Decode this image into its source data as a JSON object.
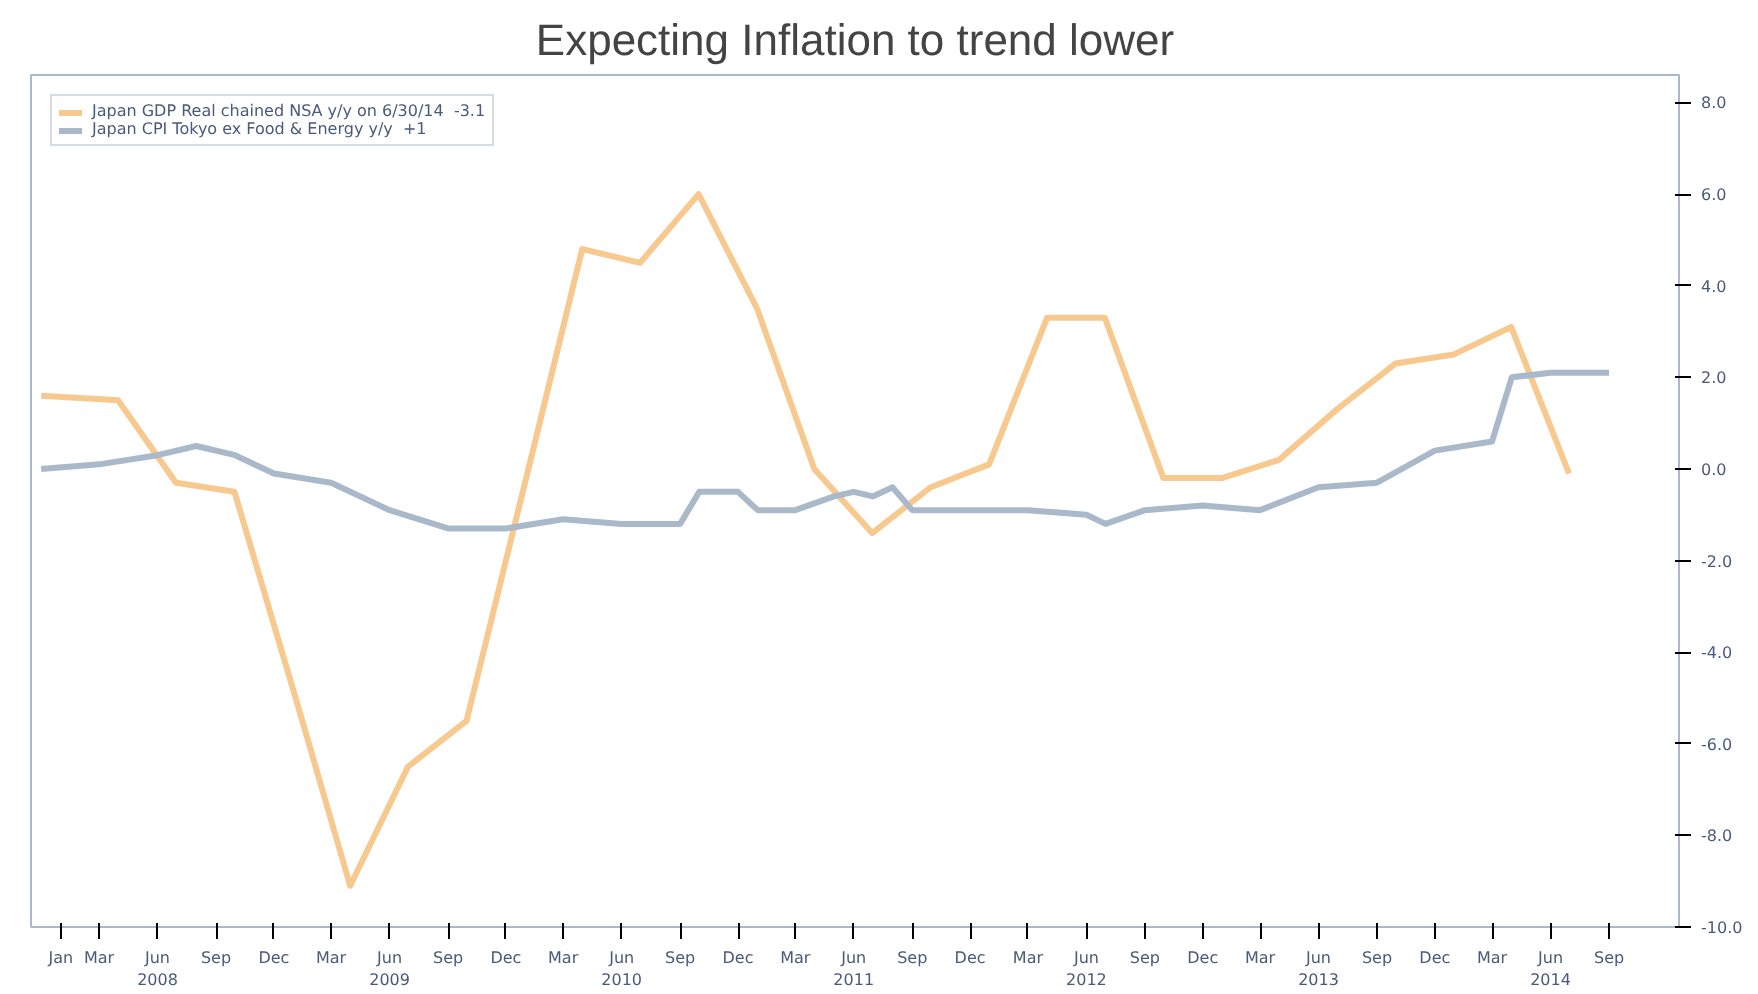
{
  "chart_data": {
    "type": "line",
    "title": "Expecting Inflation to trend lower",
    "xlim": [
      "2007-11-15",
      "2014-12-20"
    ],
    "ylim": [
      -10,
      8.6
    ],
    "yticks": [
      {
        "value": 8,
        "label": "8.0"
      },
      {
        "value": 6,
        "label": "6.0"
      },
      {
        "value": 4,
        "label": "4.0"
      },
      {
        "value": 2,
        "label": "2.0"
      },
      {
        "value": 0,
        "label": "0.0"
      },
      {
        "value": -2,
        "label": "-2.0"
      },
      {
        "value": -4,
        "label": "-4.0"
      },
      {
        "value": -6,
        "label": "-6.0"
      },
      {
        "value": -8,
        "label": "-8.0"
      },
      {
        "value": -10,
        "label": "-10.0"
      }
    ],
    "xticks": [
      {
        "value": "2008-01",
        "label": "Jan"
      },
      {
        "value": "2008-03",
        "label": "Mar"
      },
      {
        "value": "2008-06",
        "label": "Jun\n2008"
      },
      {
        "value": "2008-09",
        "label": "Sep"
      },
      {
        "value": "2008-12",
        "label": "Dec"
      },
      {
        "value": "2009-03",
        "label": "Mar"
      },
      {
        "value": "2009-06",
        "label": "Jun\n2009"
      },
      {
        "value": "2009-09",
        "label": "Sep"
      },
      {
        "value": "2009-12",
        "label": "Dec"
      },
      {
        "value": "2010-03",
        "label": "Mar"
      },
      {
        "value": "2010-06",
        "label": "Jun\n2010"
      },
      {
        "value": "2010-09",
        "label": "Sep"
      },
      {
        "value": "2010-12",
        "label": "Dec"
      },
      {
        "value": "2011-03",
        "label": "Mar"
      },
      {
        "value": "2011-06",
        "label": "Jun\n2011"
      },
      {
        "value": "2011-09",
        "label": "Sep"
      },
      {
        "value": "2011-12",
        "label": "Dec"
      },
      {
        "value": "2012-03",
        "label": "Mar"
      },
      {
        "value": "2012-06",
        "label": "Jun\n2012"
      },
      {
        "value": "2012-09",
        "label": "Sep"
      },
      {
        "value": "2012-12",
        "label": "Dec"
      },
      {
        "value": "2013-03",
        "label": "Mar"
      },
      {
        "value": "2013-06",
        "label": "Jun\n2013"
      },
      {
        "value": "2013-09",
        "label": "Sep"
      },
      {
        "value": "2013-12",
        "label": "Dec"
      },
      {
        "value": "2014-03",
        "label": "Mar"
      },
      {
        "value": "2014-06",
        "label": "Jun\n2014"
      },
      {
        "value": "2014-09",
        "label": "Sep"
      }
    ],
    "legend": "top left",
    "grid": false,
    "marker": "none",
    "line_style": "solid",
    "series": [
      {
        "name": "Japan GDP Real chained NSA y/y on 6/30/14  -3.1",
        "color": "#f7c98e",
        "x": [
          "2007-12-01",
          "2008-03-31",
          "2008-06-30",
          "2008-09-30",
          "2008-12-31",
          "2009-03-31",
          "2009-06-30",
          "2009-09-30",
          "2009-12-31",
          "2010-03-31",
          "2010-06-30",
          "2010-09-30",
          "2010-12-31",
          "2011-03-31",
          "2011-06-30",
          "2011-09-30",
          "2011-12-31",
          "2012-03-31",
          "2012-06-30",
          "2012-09-30",
          "2012-12-31",
          "2013-03-31",
          "2013-06-30",
          "2013-09-30",
          "2013-12-31",
          "2014-03-31",
          "2014-06-30"
        ],
        "values": [
          1.6,
          1.5,
          -0.3,
          -0.5,
          -4.8,
          -9.1,
          -6.5,
          -5.5,
          -0.3,
          4.8,
          4.5,
          6.0,
          3.5,
          0.0,
          -1.4,
          -0.4,
          0.1,
          3.3,
          3.3,
          -0.2,
          -0.2,
          0.2,
          1.3,
          2.3,
          2.5,
          3.1,
          -0.1
        ]
      },
      {
        "name": "Japan CPI Tokyo ex Food & Energy y/y  +1",
        "color": "#a9b9c9",
        "x": [
          "2007-12-01",
          "2008-03-01",
          "2008-06-01",
          "2008-08-01",
          "2008-10-01",
          "2008-12-01",
          "2009-03-01",
          "2009-06-01",
          "2009-09-01",
          "2009-12-01",
          "2010-03-01",
          "2010-06-01",
          "2010-09-01",
          "2010-10-01",
          "2010-12-01",
          "2011-01-01",
          "2011-03-01",
          "2011-05-01",
          "2011-06-01",
          "2011-07-01",
          "2011-08-01",
          "2011-09-01",
          "2011-12-01",
          "2012-03-01",
          "2012-06-01",
          "2012-07-01",
          "2012-09-01",
          "2012-12-01",
          "2013-03-01",
          "2013-06-01",
          "2013-09-01",
          "2013-12-01",
          "2014-03-01",
          "2014-04-01",
          "2014-06-01",
          "2014-09-01"
        ],
        "values": [
          0.0,
          0.1,
          0.3,
          0.5,
          0.3,
          -0.1,
          -0.3,
          -0.9,
          -1.3,
          -1.3,
          -1.1,
          -1.2,
          -1.2,
          -0.5,
          -0.5,
          -0.9,
          -0.9,
          -0.6,
          -0.5,
          -0.6,
          -0.4,
          -0.9,
          -0.9,
          -0.9,
          -1.0,
          -1.2,
          -0.9,
          -0.8,
          -0.9,
          -0.4,
          -0.3,
          0.4,
          0.6,
          2.0,
          2.1,
          2.1
        ]
      }
    ]
  }
}
